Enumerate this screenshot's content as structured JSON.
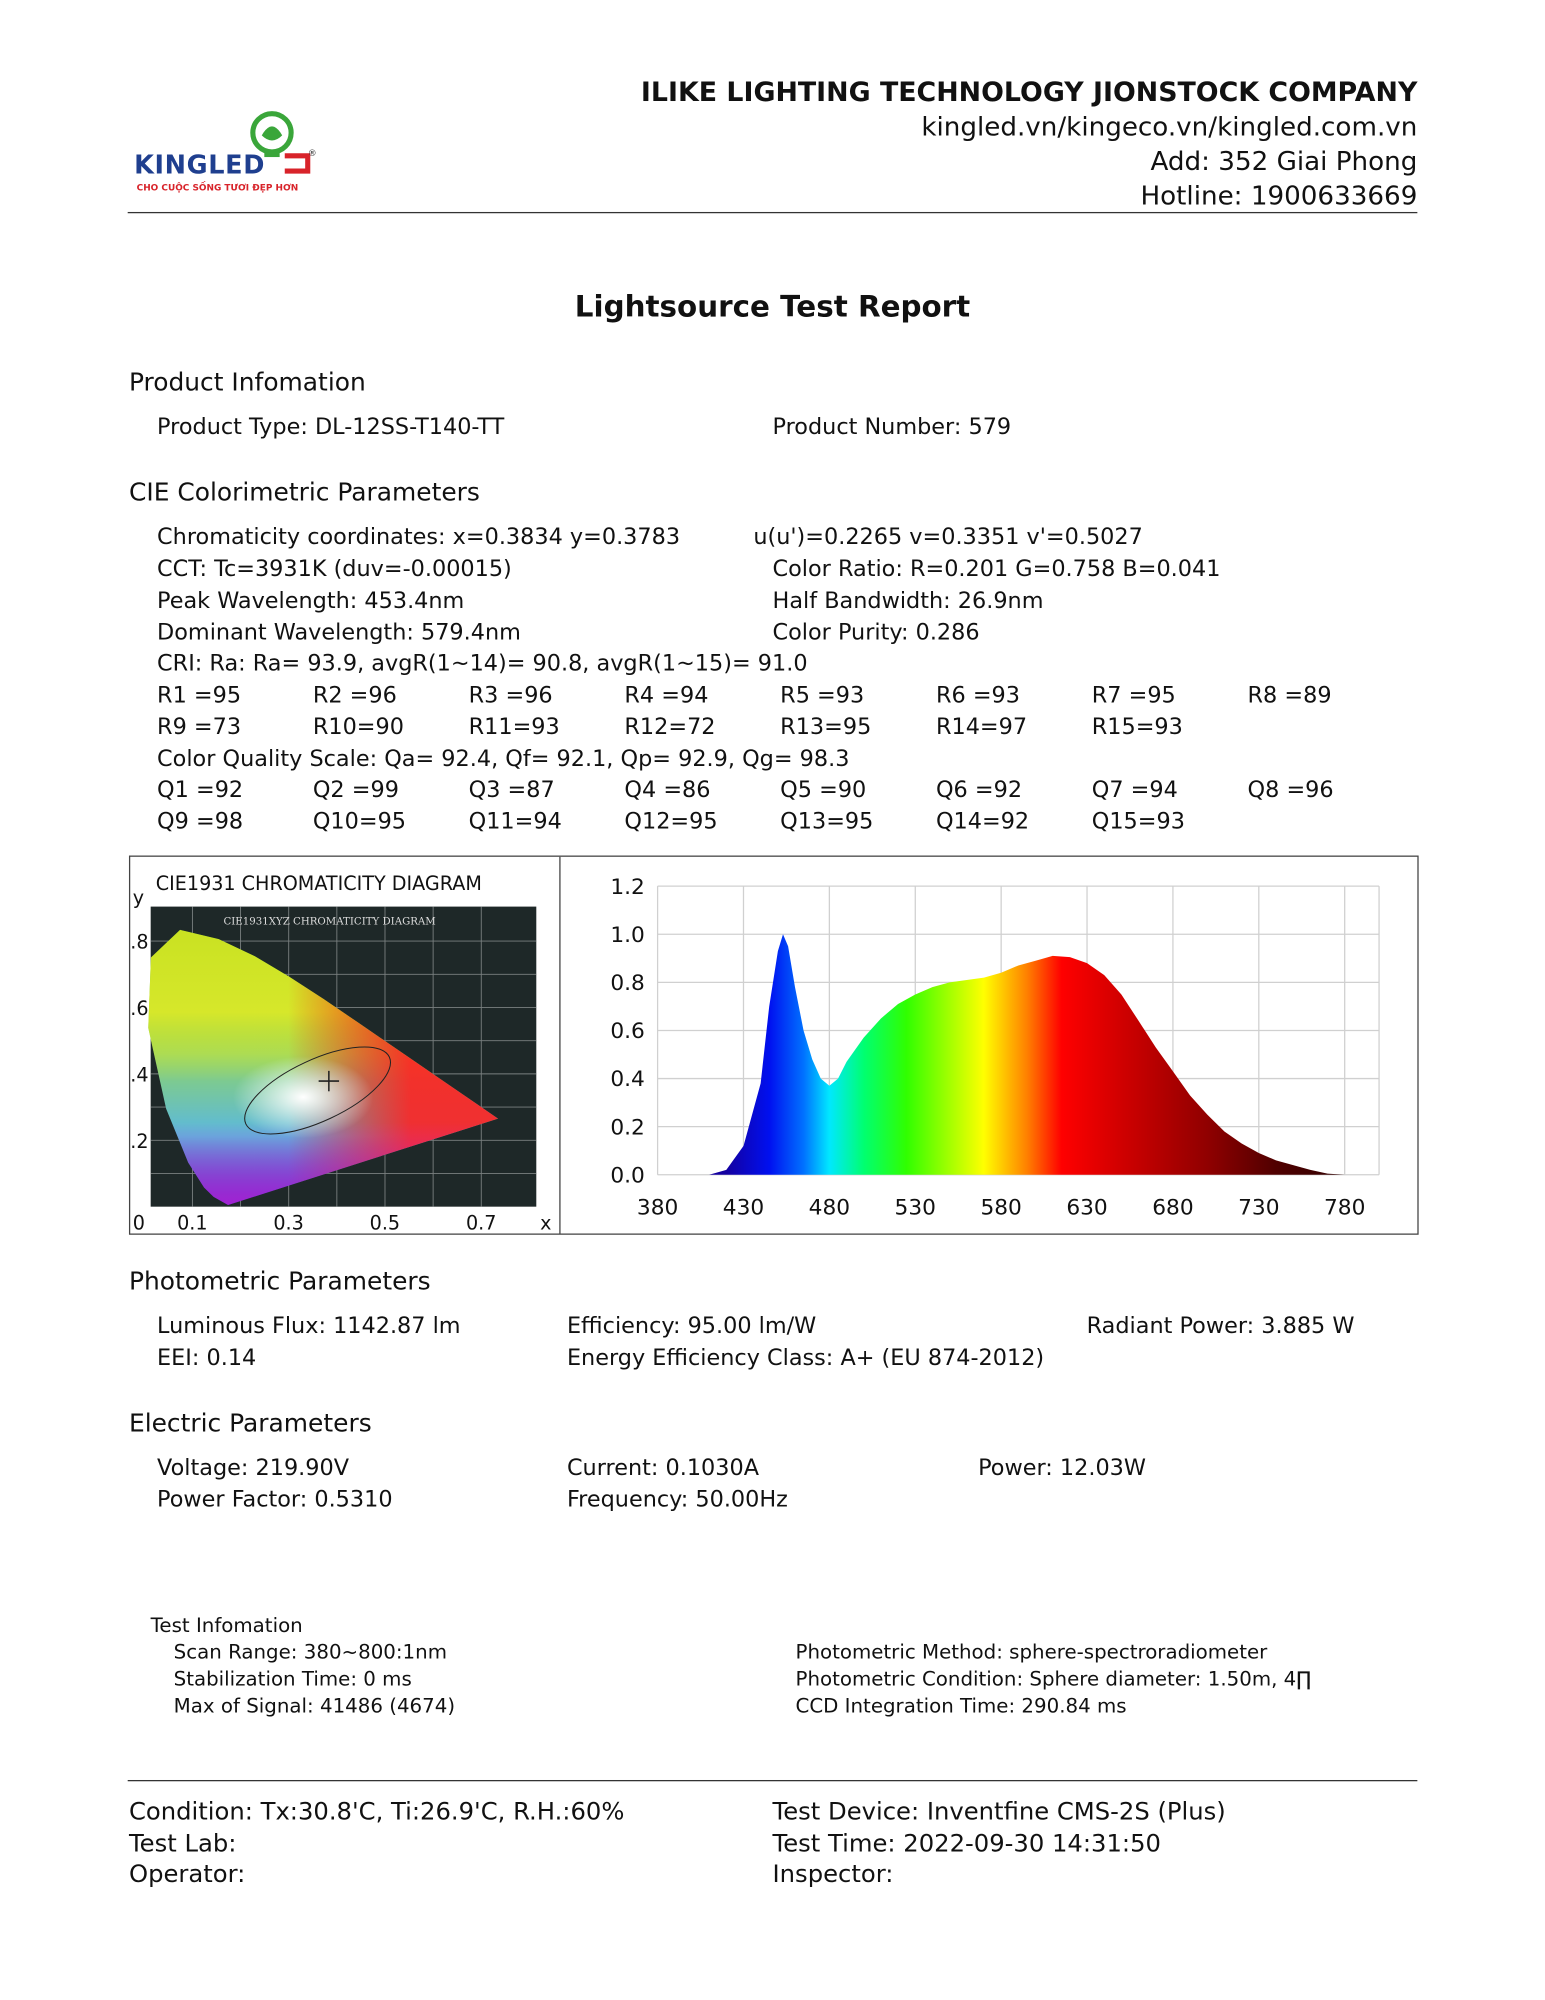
{
  "header": {
    "logo_text": "KINGLED",
    "logo_slogan": "CHO CUỘC SỐNG TƯƠI ĐẸP HƠN",
    "company": "ILIKE LIGHTING TECHNOLOGY JIONSTOCK COMPANY",
    "website": "kingled.vn/kingeco.vn/kingled.com.vn",
    "address": "Add: 352 Giai Phong",
    "hotline": "Hotline: 1900633669"
  },
  "title": "Lightsource Test Report",
  "product": {
    "heading": "Product Infomation",
    "type": "Product Type: DL-12SS-T140-TT",
    "number": "Product Number: 579"
  },
  "cie": {
    "heading": "CIE Colorimetric Parameters",
    "chromaticity": "Chromaticity coordinates: x=0.3834 y=0.3783",
    "uv": "u(u')=0.2265 v=0.3351 v'=0.5027",
    "cct": "CCT: Tc=3931K (duv=-0.00015)",
    "color_ratio": "Color Ratio: R=0.201  G=0.758  B=0.041",
    "peak": "Peak Wavelength: 453.4nm",
    "half_bw": "Half Bandwidth: 26.9nm",
    "dominant": "Dominant Wavelength: 579.4nm",
    "purity": "Color Purity: 0.286",
    "cri": "CRI: Ra: Ra= 93.9, avgR(1~14)= 90.8, avgR(1~15)= 91.0",
    "r_row1": [
      "R1 =95",
      "R2 =96",
      "R3 =96",
      "R4 =94",
      "R5 =93",
      "R6 =93",
      "R7 =95",
      "R8 =89"
    ],
    "r_row2": [
      "R9 =73",
      "R10=90",
      "R11=93",
      "R12=72",
      "R13=95",
      "R14=97",
      "R15=93"
    ],
    "cqs": "Color Quality Scale: Qa= 92.4, Qf= 92.1, Qp= 92.9, Qg= 98.3",
    "q_row1": [
      "Q1 =92",
      "Q2 =99",
      "Q3 =87",
      "Q4 =86",
      "Q5 =90",
      "Q6 =92",
      "Q7 =94",
      "Q8 =96"
    ],
    "q_row2": [
      "Q9 =98",
      "Q10=95",
      "Q11=94",
      "Q12=95",
      "Q13=95",
      "Q14=92",
      "Q15=93"
    ]
  },
  "cie_diagram": {
    "title": "CIE1931 CHROMATICITY DIAGRAM",
    "inner_title": "CIE1931XYZ CHROMATICITY DIAGRAM",
    "ylabel": "y",
    "xlabel": "x",
    "yticks": [
      ".8",
      ".6",
      ".4",
      ".2"
    ],
    "xticks": [
      "0",
      "0.1",
      "0.3",
      "0.5",
      "0.7"
    ],
    "point": {
      "x": 0.3834,
      "y": 0.3783
    }
  },
  "chart_data": {
    "type": "area",
    "title": "",
    "xlabel": "",
    "ylabel": "",
    "xlim": [
      380,
      800
    ],
    "ylim": [
      0,
      1.2
    ],
    "grid": true,
    "xticks": [
      "380",
      "430",
      "480",
      "530",
      "580",
      "630",
      "680",
      "730",
      "780"
    ],
    "yticks": [
      "0.0",
      "0.2",
      "0.4",
      "0.6",
      "0.8",
      "1.0",
      "1.2"
    ],
    "x": [
      380,
      410,
      420,
      430,
      440,
      445,
      450,
      453,
      456,
      460,
      465,
      470,
      475,
      480,
      485,
      490,
      500,
      510,
      520,
      530,
      540,
      550,
      560,
      570,
      580,
      590,
      600,
      610,
      620,
      630,
      640,
      650,
      660,
      670,
      680,
      690,
      700,
      710,
      720,
      730,
      740,
      750,
      760,
      770,
      780
    ],
    "y": [
      0,
      0,
      0.02,
      0.12,
      0.38,
      0.7,
      0.93,
      1.0,
      0.95,
      0.78,
      0.6,
      0.48,
      0.4,
      0.37,
      0.4,
      0.47,
      0.57,
      0.65,
      0.71,
      0.75,
      0.78,
      0.8,
      0.81,
      0.82,
      0.84,
      0.87,
      0.89,
      0.91,
      0.905,
      0.88,
      0.83,
      0.75,
      0.64,
      0.53,
      0.43,
      0.33,
      0.25,
      0.18,
      0.13,
      0.09,
      0.06,
      0.04,
      0.02,
      0.005,
      0
    ]
  },
  "photometric": {
    "heading": "Photometric Parameters",
    "flux": "Luminous Flux: 1142.87 lm",
    "efficiency": "Efficiency: 95.00 lm/W",
    "radiant": "Radiant Power: 3.885 W",
    "eei": "EEI:  0.14",
    "energy_class": "Energy Efficiency Class: A+ (EU 874-2012)"
  },
  "electric": {
    "heading": "Electric Parameters",
    "voltage": "Voltage: 219.90V",
    "current": "Current: 0.1030A",
    "power": "Power: 12.03W",
    "pf": "Power Factor: 0.5310",
    "frequency": "Frequency: 50.00Hz"
  },
  "test_info": {
    "heading": "Test Infomation",
    "scan": "Scan Range: 380~800:1nm",
    "stab": "Stabilization Time: 0 ms",
    "max_signal": "Max of Signal: 41486 (4674)",
    "method": "Photometric Method: sphere-spectroradiometer",
    "condition": "Photometric Condition: Sphere diameter: 1.50m, 4∏",
    "ccd": "CCD Integration Time: 290.84 ms"
  },
  "footer": {
    "condition": "Condition: Tx:30.8'C, Ti:26.9'C, R.H.:60%",
    "device": "Test Device: Inventfine CMS-2S (Plus)",
    "lab": "Test Lab:",
    "time": "Test Time: 2022-09-30 14:31:50",
    "operator": "Operator:",
    "inspector": "Inspector:"
  }
}
